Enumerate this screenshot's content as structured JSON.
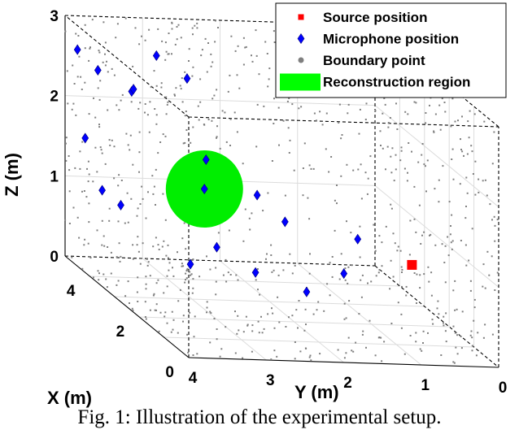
{
  "chart_data": {
    "type": "scatter3d",
    "title": "",
    "xlabel": "X (m)",
    "ylabel": "Y (m)",
    "zlabel": "Z (m)",
    "xlim": [
      0,
      5
    ],
    "ylim": [
      0,
      4
    ],
    "zlim": [
      0,
      3
    ],
    "x_ticks": [
      "0",
      "2",
      "4"
    ],
    "y_ticks": [
      "4",
      "3",
      "2",
      "1",
      "0"
    ],
    "z_ticks": [
      "0",
      "1",
      "2",
      "3"
    ],
    "grid": true,
    "legend_position": "top-right",
    "legend": [
      {
        "label": "Source position",
        "marker": "square",
        "color": "#ff0000"
      },
      {
        "label": "Microphone position",
        "marker": "diamond",
        "color": "#0000ff"
      },
      {
        "label": "Boundary point",
        "marker": "dot",
        "color": "#7f7f7f"
      },
      {
        "label": "Reconstruction region",
        "marker": "patch",
        "color": "#00ff00"
      }
    ],
    "series": [
      {
        "name": "Source position",
        "points": [
          {
            "x": 1.0,
            "y": 0.8,
            "z": 1.0
          }
        ]
      },
      {
        "name": "Reconstruction region",
        "center": {
          "x": 2.5,
          "y": 3.0,
          "z": 1.5
        },
        "radius": 0.45
      },
      {
        "name": "Microphone position",
        "points": [
          {
            "x": 4.5,
            "y": 4.0,
            "z": 2.7
          },
          {
            "x": 3.5,
            "y": 3.3,
            "z": 2.9
          },
          {
            "x": 4.5,
            "y": 3.3,
            "z": 2.2
          },
          {
            "x": 2.5,
            "y": 3.0,
            "z": 1.5
          },
          {
            "x": 3.2,
            "y": 3.0,
            "z": 2.7
          },
          {
            "x": 3.0,
            "y": 1.5,
            "z": 2.8
          },
          {
            "x": 4.3,
            "y": 3.8,
            "z": 2.5
          },
          {
            "x": 3.8,
            "y": 3.5,
            "z": 2.4
          },
          {
            "x": 4.0,
            "y": 2.5,
            "z": 1.5
          },
          {
            "x": 3.5,
            "y": 2.0,
            "z": 1.2
          },
          {
            "x": 3.0,
            "y": 1.8,
            "z": 1.0
          },
          {
            "x": 2.0,
            "y": 2.5,
            "z": 0.6
          },
          {
            "x": 1.5,
            "y": 2.0,
            "z": 0.5
          },
          {
            "x": 4.0,
            "y": 3.6,
            "z": 0.9
          },
          {
            "x": 1.0,
            "y": 1.5,
            "z": 1.3
          },
          {
            "x": 4.5,
            "y": 3.9,
            "z": 1.6
          },
          {
            "x": 2.0,
            "y": 3.0,
            "z": 0.9
          },
          {
            "x": 3.5,
            "y": 4.0,
            "z": 1.2
          },
          {
            "x": 1.5,
            "y": 3.5,
            "z": 0.8
          },
          {
            "x": 2.5,
            "y": 1.2,
            "z": 0.5
          }
        ]
      },
      {
        "name": "Boundary point",
        "count": 900
      }
    ]
  },
  "caption": "Fig. 1: Illustration of the experimental setup."
}
